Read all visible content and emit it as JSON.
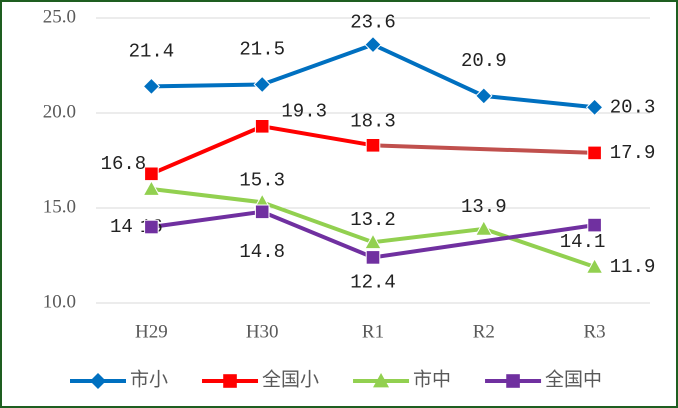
{
  "chart_data": {
    "type": "line",
    "categories": [
      "H29",
      "H30",
      "R1",
      "R2",
      "R3"
    ],
    "series": [
      {
        "name": "市小",
        "color": "#0070c0",
        "marker": "diamond",
        "values": [
          21.4,
          21.5,
          23.6,
          20.9,
          20.3
        ]
      },
      {
        "name": "全国小",
        "color": "#ff0000",
        "gap_color": "#c0504d",
        "marker": "square",
        "values": [
          16.8,
          19.3,
          18.3,
          null,
          17.9
        ]
      },
      {
        "name": "市中",
        "color": "#92d050",
        "marker": "triangle",
        "values": [
          16.0,
          15.3,
          13.2,
          13.9,
          11.9
        ]
      },
      {
        "name": "全国中",
        "color": "#7030a0",
        "gap_color": "#7030a0",
        "marker": "square",
        "values": [
          14.0,
          14.8,
          12.4,
          null,
          14.1
        ]
      }
    ],
    "ylim": [
      10,
      25
    ],
    "yticks": [
      {
        "value": 10,
        "label": "10.0"
      },
      {
        "value": 15,
        "label": "15.0"
      },
      {
        "value": 20,
        "label": "20.0"
      },
      {
        "value": 25,
        "label": "25.0"
      }
    ],
    "grid": true,
    "legend": "bottom",
    "connect_gaps": true
  }
}
